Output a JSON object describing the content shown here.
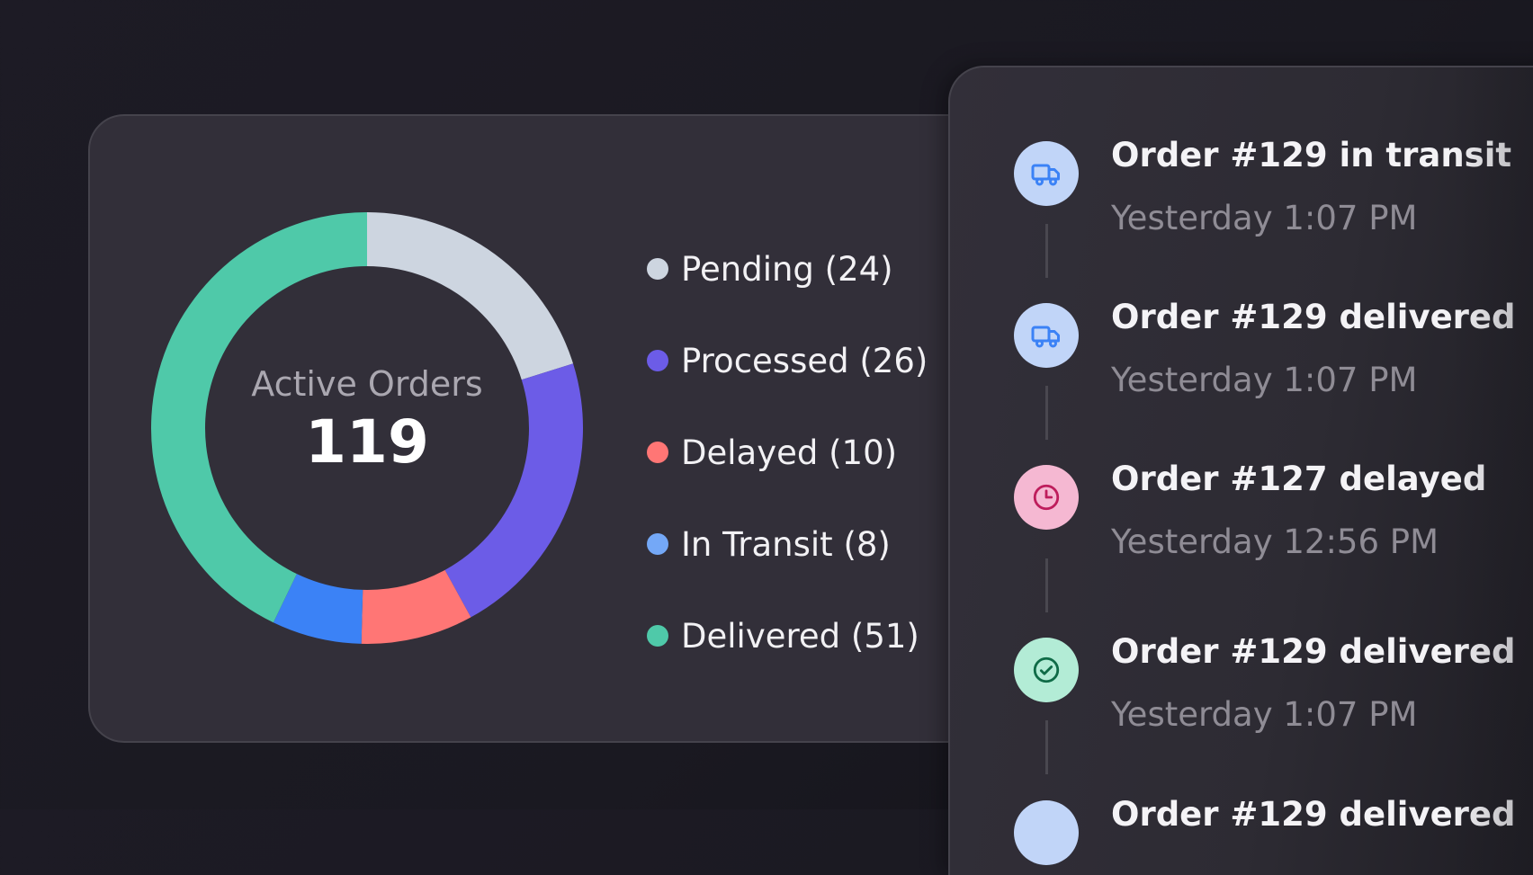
{
  "orders_card": {
    "center_label": "Active Orders",
    "center_value": "119",
    "legend": [
      {
        "label": "Pending (24)",
        "color": "#cdd5e0"
      },
      {
        "label": "Processed (26)",
        "color": "#6c5ce7"
      },
      {
        "label": "Delayed (10)",
        "color": "#ff7675"
      },
      {
        "label": "In Transit (8)",
        "color": "#74a8f7"
      },
      {
        "label": "Delivered (51)",
        "color": "#4fc9a9"
      }
    ]
  },
  "chart_data": {
    "type": "pie",
    "title": "Active Orders",
    "total": 119,
    "categories": [
      "Pending",
      "Processed",
      "Delayed",
      "In Transit",
      "Delivered"
    ],
    "values": [
      24,
      26,
      10,
      8,
      51
    ],
    "colors": [
      "#cdd5e0",
      "#6c5ce7",
      "#ff7675",
      "#3b82f6",
      "#4fc9a9"
    ],
    "donut": true,
    "legend_position": "right"
  },
  "timeline": {
    "items": [
      {
        "title": "Order #129 in transit",
        "time": "Yesterday 1:07 PM",
        "icon": "truck-icon",
        "bg": "#c1d5f8",
        "fg": "#3b82f6"
      },
      {
        "title": "Order #129 delivered",
        "time": "Yesterday 1:07 PM",
        "icon": "truck-icon",
        "bg": "#c1d5f8",
        "fg": "#3b82f6"
      },
      {
        "title": "Order #127 delayed",
        "time": "Yesterday 12:56 PM",
        "icon": "clock-icon",
        "bg": "#f5b8d2",
        "fg": "#be1d5c"
      },
      {
        "title": "Order #129 delivered",
        "time": "Yesterday 1:07 PM",
        "icon": "check-circle-icon",
        "bg": "#b3ecd6",
        "fg": "#0f6b47"
      },
      {
        "title": "Order #129 delivered",
        "time": "",
        "icon": "truck-icon",
        "bg": "#c1d5f8",
        "fg": "#3b82f6"
      }
    ]
  }
}
